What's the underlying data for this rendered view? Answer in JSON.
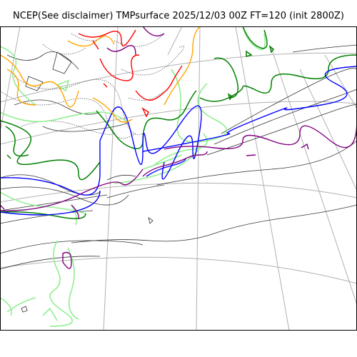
{
  "title": "NCEP(See disclaimer) TMPsurface 2025/12/03 00Z FT=120 (init 2800Z)",
  "colors": {
    "background": "#ffffff",
    "graticule": "#b0b0b0",
    "coastline_minor": "#444444",
    "contour_black": "#333333",
    "contour_blue": "#0000ff",
    "contour_purple": "#800080",
    "contour_darkgreen": "#008000",
    "contour_lightgreen": "#90ee90",
    "contour_orange": "#ffa500",
    "contour_red": "#ff0000"
  }
}
